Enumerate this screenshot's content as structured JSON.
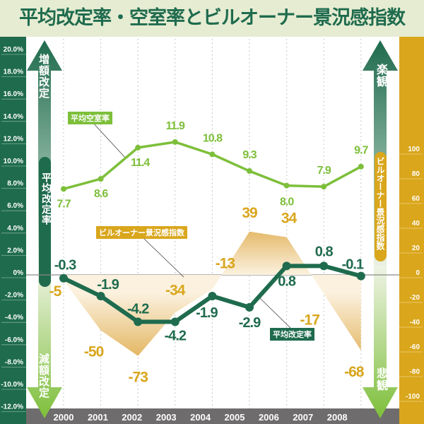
{
  "title": "平均改定率・空室率とビルオーナー景況感指数",
  "left_arrow": {
    "top_label": "増額改定",
    "bottom_label": "減額改定",
    "axis_name": "平均改定率"
  },
  "right_arrow": {
    "top_label": "楽観",
    "bottom_label": "悲観",
    "axis_name": "ビルオーナー景況感指数"
  },
  "colors": {
    "rent": "#1f6b4e",
    "vacancy": "#7dbf3a",
    "boi": "#d9a61c",
    "bottom_bar": "#6e6c6d",
    "title_bg": "#e6ecd2"
  },
  "chart_data": {
    "type": "line",
    "title": "平均改定率・空室率とビルオーナー景況感指数",
    "categories": [
      "2000",
      "2001",
      "2002",
      "2003",
      "2004",
      "2005",
      "2006",
      "2007",
      "2008"
    ],
    "left_axis": {
      "ylim": [
        -12,
        20
      ],
      "ticks": [
        "20.0%",
        "18.0%",
        "16.0%",
        "14.0%",
        "12.0%",
        "10.0%",
        "8.0%",
        "6.0%",
        "4.0%",
        "2.0%",
        "0%",
        "-2.0%",
        "-4.0%",
        "-6.0%",
        "-8.0%",
        "-10.0%",
        "-12.0%"
      ]
    },
    "right_axis": {
      "ylim": [
        -100,
        100
      ],
      "ticks": [
        "100",
        "80",
        "60",
        "40",
        "20",
        "0",
        "-20",
        "-40",
        "-60",
        "-80",
        "-100"
      ]
    },
    "grid": "vertical dotted",
    "series": [
      {
        "name": "平均空室率",
        "type": "line",
        "axis": "left",
        "values": [
          7.7,
          8.6,
          11.4,
          11.9,
          10.8,
          9.3,
          8.0,
          7.9,
          9.7
        ],
        "labels": [
          "7.7",
          "8.6",
          "11.4",
          "11.9",
          "10.8",
          "9.3",
          "8.0",
          "7.9",
          "9.7"
        ]
      },
      {
        "name": "平均改定率",
        "type": "line",
        "axis": "left",
        "values": [
          -0.3,
          -1.9,
          -4.2,
          -4.2,
          -1.9,
          -2.9,
          0.8,
          0.8,
          -0.1
        ],
        "labels": [
          "-0.3",
          "-1.9",
          "-4.2",
          "-4.2",
          "-1.9",
          "-2.9",
          "0.8",
          "0.8",
          "-0.1"
        ]
      },
      {
        "name": "ビルオーナー景況感指数",
        "type": "area",
        "axis": "right",
        "values": [
          -5,
          -50,
          -73,
          -34,
          -13,
          39,
          34,
          -17,
          -68
        ],
        "labels": [
          "-5",
          "-50",
          "-73",
          "-34",
          "-13",
          "39",
          "34",
          "-17",
          "-68"
        ]
      }
    ]
  }
}
